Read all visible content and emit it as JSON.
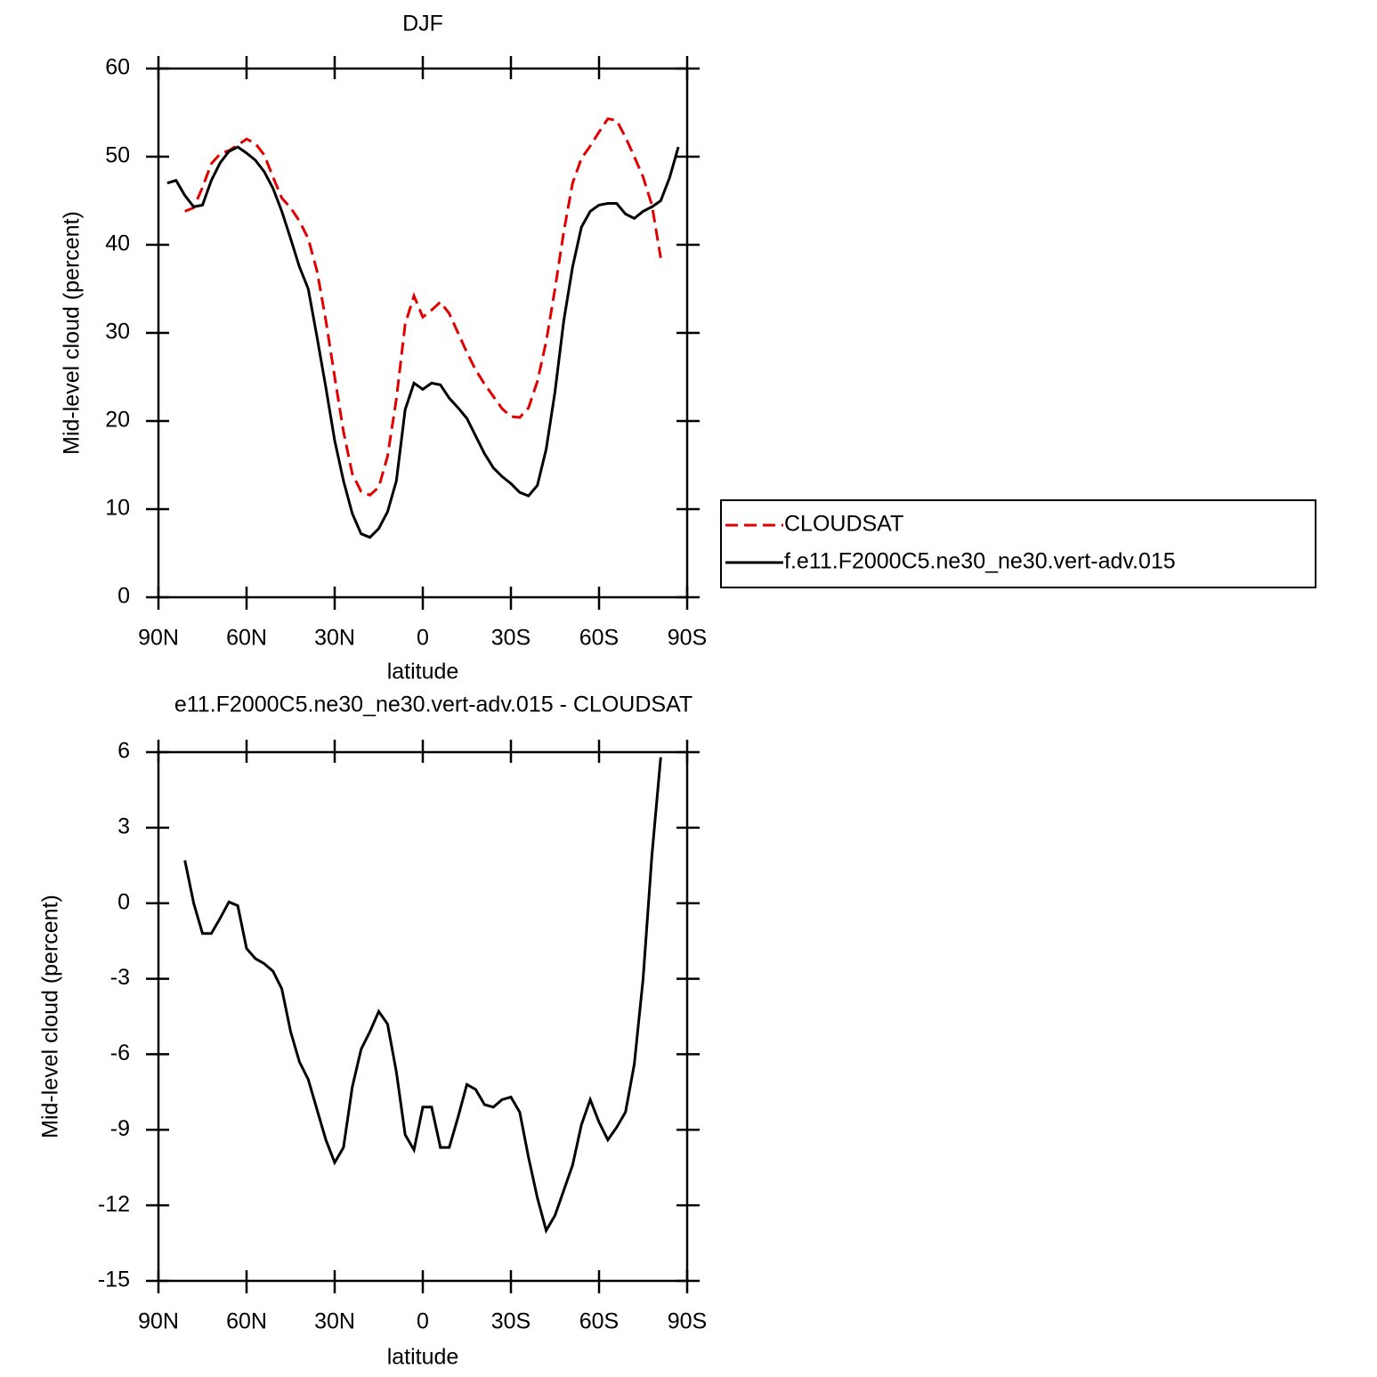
{
  "chart_data": [
    {
      "type": "line",
      "title": "DJF",
      "xlabel": "latitude",
      "ylabel": "Mid-level cloud (percent)",
      "xlim": [
        90,
        -90
      ],
      "xticks": [
        {
          "value": 90,
          "label": "90N"
        },
        {
          "value": 60,
          "label": "60N"
        },
        {
          "value": 30,
          "label": "30N"
        },
        0,
        {
          "value": -30,
          "label": "30S"
        },
        {
          "value": -60,
          "label": "60S"
        },
        {
          "value": -90,
          "label": "90S"
        }
      ],
      "ylim": [
        0,
        60
      ],
      "yticks": [
        0,
        10,
        20,
        30,
        40,
        50,
        60
      ],
      "legend": "right",
      "series": [
        {
          "name": "CLOUDSAT",
          "color": "#e00000",
          "linestyle": "dashed",
          "x": [
            81,
            78,
            75,
            72,
            69,
            66,
            63,
            60,
            57,
            54,
            51,
            48,
            45,
            42,
            39,
            36,
            33,
            30,
            27,
            24,
            21,
            18,
            15,
            12,
            9,
            6,
            3,
            0,
            -3,
            -6,
            -9,
            -12,
            -15,
            -18,
            -21,
            -24,
            -27,
            -30,
            -33,
            -36,
            -39,
            -42,
            -45,
            -48,
            -51,
            -54,
            -57,
            -60,
            -63,
            -66,
            -69,
            -72,
            -75,
            -78,
            -81
          ],
          "values": [
            43.8,
            44.2,
            46.5,
            49.2,
            50.3,
            50.7,
            51.3,
            52,
            51.5,
            50.2,
            47.7,
            45.3,
            44.2,
            42.7,
            40.7,
            37,
            31.4,
            25,
            18.8,
            14,
            12,
            11.6,
            12.5,
            16,
            22.5,
            31,
            34.2,
            31.8,
            32.6,
            33.5,
            32.2,
            30,
            27.8,
            25.8,
            24.2,
            22.8,
            21.4,
            20.5,
            20.4,
            21.5,
            24.5,
            29,
            35,
            41.5,
            47,
            49.8,
            51.2,
            52.8,
            54.3,
            54.1,
            52.2,
            50,
            47.7,
            44.5,
            38.5
          ]
        },
        {
          "name": "f.e11.F2000C5.ne30_ne30.vert-adv.015",
          "color": "#000000",
          "linestyle": "solid",
          "x": [
            87,
            84,
            81,
            78,
            75,
            72,
            69,
            66,
            63,
            60,
            57,
            54,
            51,
            48,
            45,
            42,
            39,
            36,
            33,
            30,
            27,
            24,
            21,
            18,
            15,
            12,
            9,
            6,
            3,
            0,
            -3,
            -6,
            -9,
            -12,
            -15,
            -18,
            -21,
            -24,
            -27,
            -30,
            -33,
            -36,
            -39,
            -42,
            -45,
            -48,
            -51,
            -54,
            -57,
            -60,
            -63,
            -66,
            -69,
            -72,
            -75,
            -78,
            -81,
            -84,
            -87
          ],
          "values": [
            47.0,
            47.3,
            45.6,
            44.3,
            44.5,
            47.3,
            49.3,
            50.6,
            51.1,
            50.4,
            49.6,
            48.3,
            46.4,
            43.8,
            40.7,
            37.5,
            35,
            29.5,
            23.8,
            17.8,
            13.2,
            9.5,
            7.2,
            6.8,
            7.8,
            9.7,
            13.2,
            21.3,
            24.3,
            23.6,
            24.3,
            24.1,
            22.6,
            21.5,
            20.3,
            18.3,
            16.3,
            14.7,
            13.7,
            12.9,
            11.9,
            11.5,
            12.7,
            16.8,
            23.3,
            31.4,
            37.5,
            42,
            43.8,
            44.5,
            44.7,
            44.7,
            43.5,
            43,
            43.8,
            44.3,
            45,
            47.6,
            51.1
          ]
        }
      ]
    },
    {
      "type": "line",
      "title": "e11.F2000C5.ne30_ne30.vert-adv.015 - CLOUDSAT",
      "xlabel": "latitude",
      "ylabel": "Mid-level cloud (percent)",
      "xlim": [
        90,
        -90
      ],
      "xticks": [
        {
          "value": 90,
          "label": "90N"
        },
        {
          "value": 60,
          "label": "60N"
        },
        {
          "value": 30,
          "label": "30N"
        },
        0,
        {
          "value": -30,
          "label": "30S"
        },
        {
          "value": -60,
          "label": "60S"
        },
        {
          "value": -90,
          "label": "90S"
        }
      ],
      "ylim": [
        -15,
        6
      ],
      "yticks": [
        -15,
        -12,
        -9,
        -6,
        -3,
        0,
        3,
        6
      ],
      "series": [
        {
          "color": "#000000",
          "linestyle": "solid",
          "x": [
            81,
            78,
            75,
            72,
            69,
            66,
            63,
            60,
            57,
            54,
            51,
            48,
            45,
            42,
            39,
            36,
            33,
            30,
            27,
            24,
            21,
            18,
            15,
            12,
            9,
            6,
            3,
            0,
            -3,
            -6,
            -9,
            -12,
            -15,
            -18,
            -21,
            -24,
            -27,
            -30,
            -33,
            -36,
            -39,
            -42,
            -45,
            -48,
            -51,
            -54,
            -57,
            -60,
            -63,
            -66,
            -69,
            -72,
            -75,
            -78,
            -81
          ],
          "values": [
            1.7,
            0.0,
            -1.2,
            -1.2,
            -0.6,
            0.05,
            -0.1,
            -1.8,
            -2.2,
            -2.4,
            -2.7,
            -3.4,
            -5.1,
            -6.3,
            -7.0,
            -8.2,
            -9.4,
            -10.3,
            -9.7,
            -7.3,
            -5.8,
            -5.1,
            -4.3,
            -4.8,
            -6.7,
            -9.2,
            -9.8,
            -8.1,
            -8.1,
            -9.7,
            -9.7,
            -8.5,
            -7.2,
            -7.4,
            -8.0,
            -8.1,
            -7.8,
            -7.7,
            -8.3,
            -10.1,
            -11.7,
            -13,
            -12.4,
            -11.4,
            -10.4,
            -8.8,
            -7.8,
            -8.7,
            -9.4,
            -8.9,
            -8.3,
            -6.4,
            -3,
            1.9,
            5.8
          ]
        }
      ]
    }
  ]
}
